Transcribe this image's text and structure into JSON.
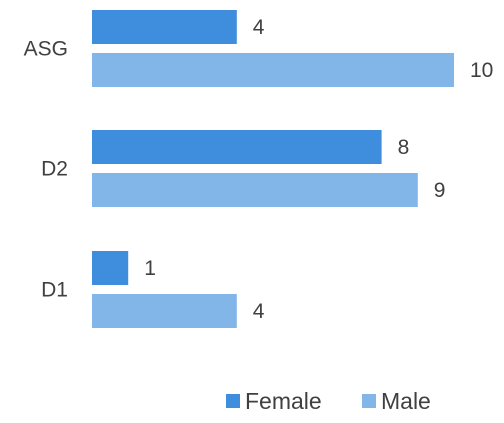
{
  "chart_data": {
    "type": "bar",
    "orientation": "horizontal",
    "categories": [
      "ASG",
      "D2",
      "D1"
    ],
    "series": [
      {
        "name": "Female",
        "values": [
          4,
          8,
          1
        ],
        "color": "#3F8EDD"
      },
      {
        "name": "Male",
        "values": [
          10,
          9,
          4
        ],
        "color": "#82B5E8"
      }
    ],
    "title": "",
    "xlabel": "",
    "ylabel": "",
    "xlim": [
      0,
      10
    ],
    "grid": false,
    "legend_position": "bottom-right",
    "data_labels": true
  }
}
